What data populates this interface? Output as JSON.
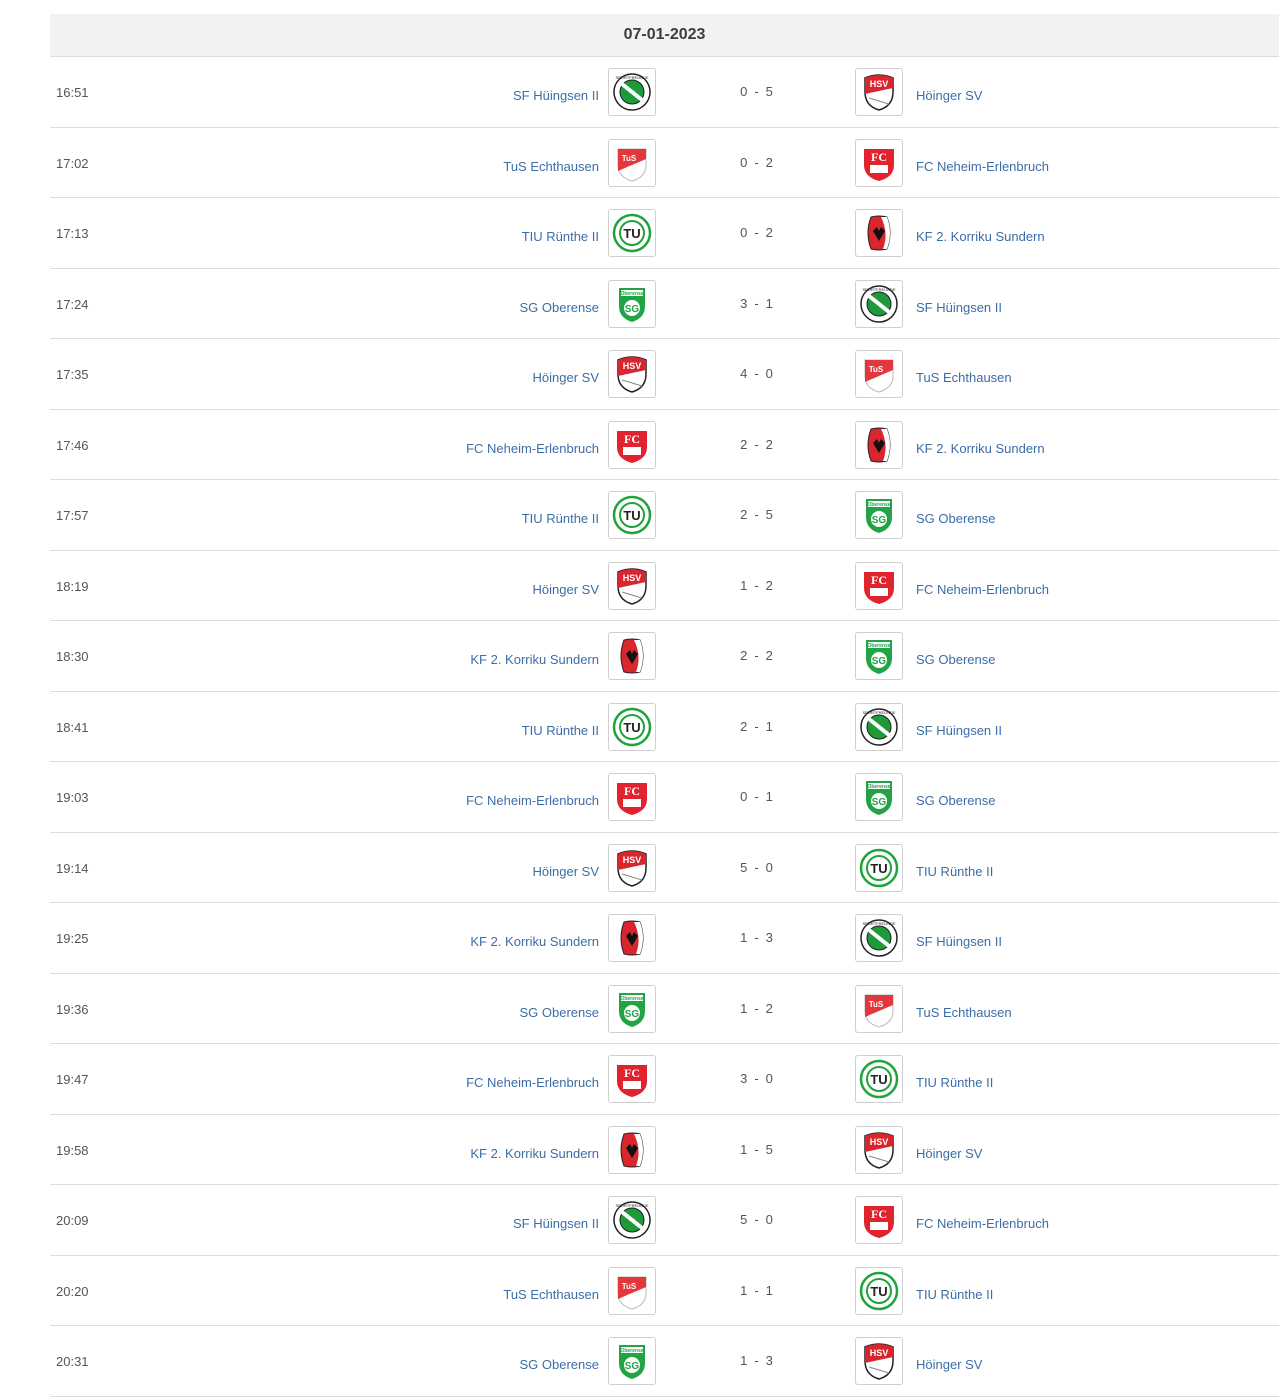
{
  "date": "07-01-2023",
  "matches": [
    {
      "time": "16:51",
      "home": "SF Hüingsen II",
      "home_logo": "sfh",
      "home_score": "0",
      "away_score": "5",
      "away": "Höinger SV",
      "away_logo": "hsv"
    },
    {
      "time": "17:02",
      "home": "TuS Echthausen",
      "home_logo": "tus",
      "home_score": "0",
      "away_score": "2",
      "away": "FC Neheim-Erlenbruch",
      "away_logo": "fc"
    },
    {
      "time": "17:13",
      "home": "TIU Rünthe II",
      "home_logo": "tiu",
      "home_score": "0",
      "away_score": "2",
      "away": "KF 2. Korriku Sundern",
      "away_logo": "kf"
    },
    {
      "time": "17:24",
      "home": "SG Oberense",
      "home_logo": "sg",
      "home_score": "3",
      "away_score": "1",
      "away": "SF Hüingsen II",
      "away_logo": "sfh"
    },
    {
      "time": "17:35",
      "home": "Höinger SV",
      "home_logo": "hsv",
      "home_score": "4",
      "away_score": "0",
      "away": "TuS Echthausen",
      "away_logo": "tus"
    },
    {
      "time": "17:46",
      "home": "FC Neheim-Erlenbruch",
      "home_logo": "fc",
      "home_score": "2",
      "away_score": "2",
      "away": "KF 2. Korriku Sundern",
      "away_logo": "kf"
    },
    {
      "time": "17:57",
      "home": "TIU Rünthe II",
      "home_logo": "tiu",
      "home_score": "2",
      "away_score": "5",
      "away": "SG Oberense",
      "away_logo": "sg"
    },
    {
      "time": "18:19",
      "home": "Höinger SV",
      "home_logo": "hsv",
      "home_score": "1",
      "away_score": "2",
      "away": "FC Neheim-Erlenbruch",
      "away_logo": "fc"
    },
    {
      "time": "18:30",
      "home": "KF 2. Korriku Sundern",
      "home_logo": "kf",
      "home_score": "2",
      "away_score": "2",
      "away": "SG Oberense",
      "away_logo": "sg"
    },
    {
      "time": "18:41",
      "home": "TIU Rünthe II",
      "home_logo": "tiu",
      "home_score": "2",
      "away_score": "1",
      "away": "SF Hüingsen II",
      "away_logo": "sfh"
    },
    {
      "time": "19:03",
      "home": "FC Neheim-Erlenbruch",
      "home_logo": "fc",
      "home_score": "0",
      "away_score": "1",
      "away": "SG Oberense",
      "away_logo": "sg"
    },
    {
      "time": "19:14",
      "home": "Höinger SV",
      "home_logo": "hsv",
      "home_score": "5",
      "away_score": "0",
      "away": "TIU Rünthe II",
      "away_logo": "tiu"
    },
    {
      "time": "19:25",
      "home": "KF 2. Korriku Sundern",
      "home_logo": "kf",
      "home_score": "1",
      "away_score": "3",
      "away": "SF Hüingsen II",
      "away_logo": "sfh"
    },
    {
      "time": "19:36",
      "home": "SG Oberense",
      "home_logo": "sg",
      "home_score": "1",
      "away_score": "2",
      "away": "TuS Echthausen",
      "away_logo": "tus"
    },
    {
      "time": "19:47",
      "home": "FC Neheim-Erlenbruch",
      "home_logo": "fc",
      "home_score": "3",
      "away_score": "0",
      "away": "TIU Rünthe II",
      "away_logo": "tiu"
    },
    {
      "time": "19:58",
      "home": "KF 2. Korriku Sundern",
      "home_logo": "kf",
      "home_score": "1",
      "away_score": "5",
      "away": "Höinger SV",
      "away_logo": "hsv"
    },
    {
      "time": "20:09",
      "home": "SF Hüingsen II",
      "home_logo": "sfh",
      "home_score": "5",
      "away_score": "0",
      "away": "FC Neheim-Erlenbruch",
      "away_logo": "fc"
    },
    {
      "time": "20:20",
      "home": "TuS Echthausen",
      "home_logo": "tus",
      "home_score": "1",
      "away_score": "1",
      "away": "TIU Rünthe II",
      "away_logo": "tiu"
    },
    {
      "time": "20:31",
      "home": "SG Oberense",
      "home_logo": "sg",
      "home_score": "1",
      "away_score": "3",
      "away": "Höinger SV",
      "away_logo": "hsv"
    }
  ],
  "logos": {
    "sfh": {
      "icon": "sf-huingsen-logo-icon",
      "color": "#1f9a3a",
      "text": "SPORTFREUNDE HÜINGSEN 1920 e.V."
    },
    "hsv": {
      "icon": "hoinger-sv-logo-icon",
      "color": "#d9262e",
      "text": "HSV"
    },
    "tus": {
      "icon": "tus-echthausen-logo-icon",
      "color": "#e2373c",
      "text": "TuS"
    },
    "fc": {
      "icon": "fc-neheim-logo-icon",
      "color": "#e0232d",
      "text": "FC"
    },
    "tiu": {
      "icon": "tiu-runthe-logo-icon",
      "color": "#1fa33a",
      "text": "TIU"
    },
    "kf": {
      "icon": "kf-korriku-logo-icon",
      "color": "#d9262e",
      "text": ""
    },
    "sg": {
      "icon": "sg-oberense-logo-icon",
      "color": "#22a346",
      "text": "Oberense SG 73"
    }
  }
}
